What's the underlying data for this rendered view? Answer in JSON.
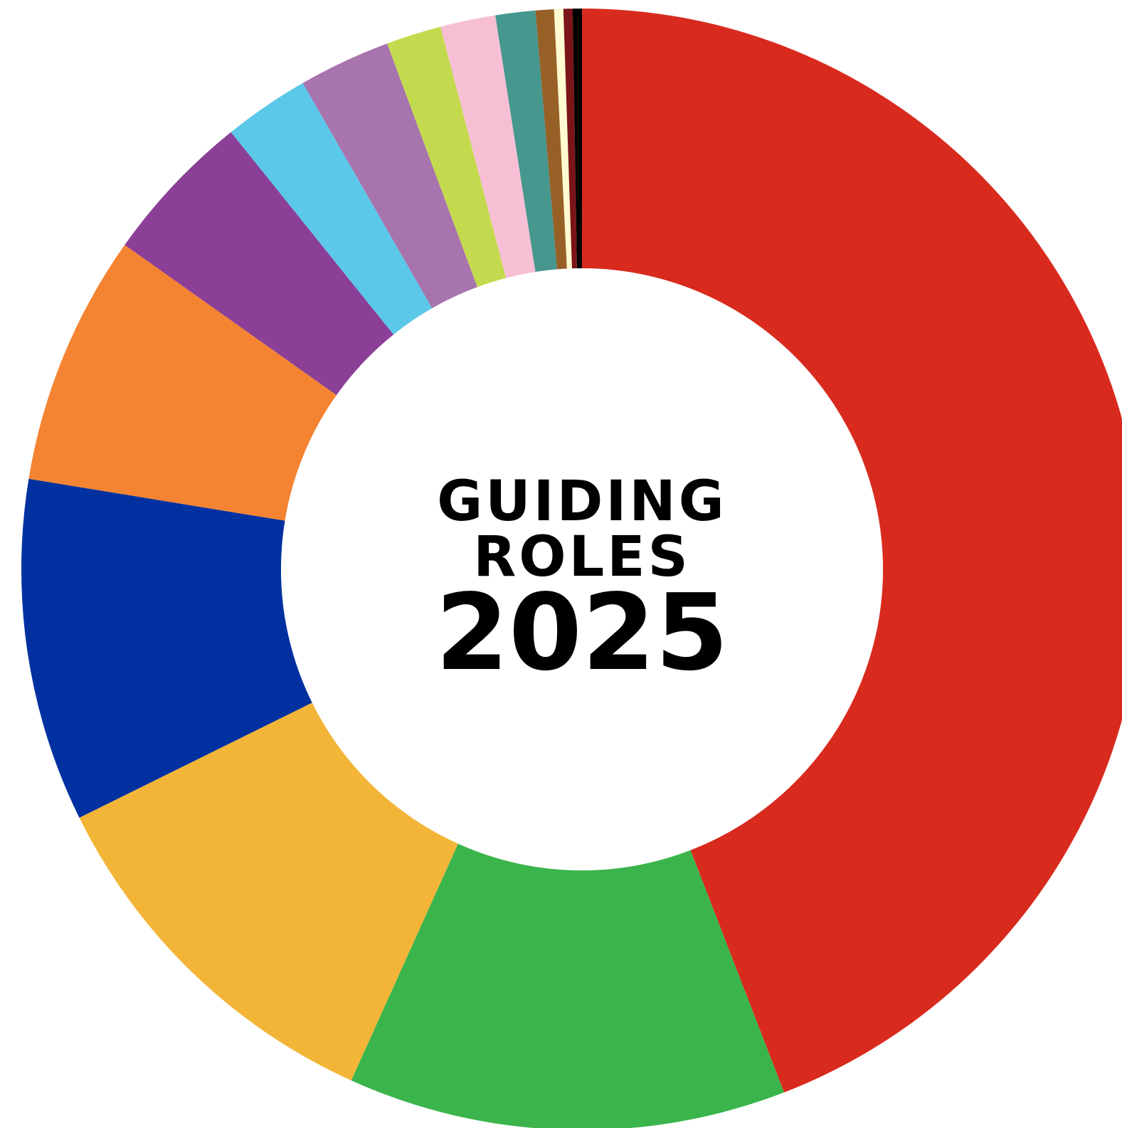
{
  "chart_data": {
    "type": "pie",
    "variant": "donut",
    "title_lines": [
      "GUIDING",
      "ROLES"
    ],
    "year": "2025",
    "start_angle_deg": 0,
    "direction": "clockwise",
    "slices": [
      {
        "percent": 50.0,
        "color": "#d92a1e"
      },
      {
        "percent": 14.3,
        "color": "#3bb44c"
      },
      {
        "percent": 12.4,
        "color": "#f3b538"
      },
      {
        "percent": 11.2,
        "color": "#0131a0"
      },
      {
        "percent": 8.2,
        "color": "#f48432"
      },
      {
        "percent": 5.0,
        "color": "#8b3f96"
      },
      {
        "percent": 2.8,
        "color": "#5bc8e9"
      },
      {
        "percent": 3.0,
        "color": "#a874ad"
      },
      {
        "percent": 1.8,
        "color": "#c4da4e"
      },
      {
        "percent": 1.8,
        "color": "#f7bfd4"
      },
      {
        "percent": 1.3,
        "color": "#46978e"
      },
      {
        "percent": 0.6,
        "color": "#976027"
      },
      {
        "percent": 0.3,
        "color": "#fffad0"
      },
      {
        "percent": 0.3,
        "color": "#7a1418"
      },
      {
        "percent": 0.3,
        "color": "#000000"
      }
    ]
  }
}
